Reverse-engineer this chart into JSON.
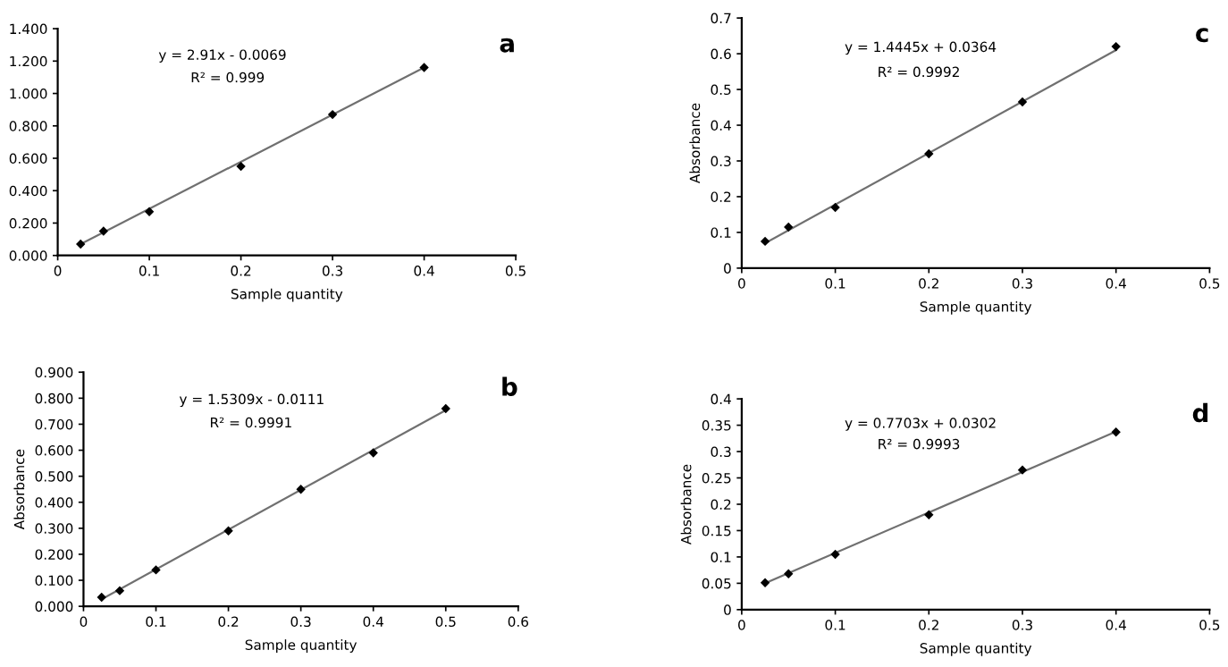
{
  "chart_data": [
    {
      "type": "scatter",
      "title": "a",
      "xlabel": "Sample quantity",
      "grid": false,
      "xlim": [
        0,
        0.5
      ],
      "xticks": [
        0,
        0.1,
        0.2,
        0.3,
        0.4,
        0.5
      ],
      "ylim": [
        0,
        1.4
      ],
      "yticks": [
        {
          "value": 0,
          "label": "0.000"
        },
        {
          "value": 0.2,
          "label": "0.200"
        },
        {
          "value": 0.4,
          "label": "0.400"
        },
        {
          "value": 0.6,
          "label": "0.600"
        },
        {
          "value": 0.8,
          "label": "0.800"
        },
        {
          "value": 1.0,
          "label": "1.000"
        },
        {
          "value": 1.2,
          "label": "1.200"
        },
        {
          "value": 1.4,
          "label": "1.400"
        }
      ],
      "annotations": [
        "y = 2.91x - 0.0069",
        "R² = 0.999"
      ],
      "series": [
        {
          "marker": "diamond",
          "color": "#000000",
          "x": [
            0.025,
            0.05,
            0.1,
            0.2,
            0.3,
            0.4
          ],
          "values": [
            0.07,
            0.15,
            0.27,
            0.55,
            0.87,
            1.16
          ]
        },
        {
          "type": "line",
          "color": "#707070",
          "x": [
            0.025,
            0.4
          ],
          "values": [
            0.07,
            1.16
          ]
        }
      ]
    },
    {
      "type": "scatter",
      "title": "b",
      "xlabel": "Sample quantity",
      "ylabel": "Absorbance",
      "grid": false,
      "xlim": [
        0,
        0.6
      ],
      "xticks": [
        0,
        0.1,
        0.2,
        0.3,
        0.4,
        0.5,
        0.6
      ],
      "ylim": [
        0,
        0.9
      ],
      "yticks": [
        {
          "value": 0,
          "label": "0.000"
        },
        {
          "value": 0.1,
          "label": "0.100"
        },
        {
          "value": 0.2,
          "label": "0.200"
        },
        {
          "value": 0.3,
          "label": "0.300"
        },
        {
          "value": 0.4,
          "label": "0.400"
        },
        {
          "value": 0.5,
          "label": "0.500"
        },
        {
          "value": 0.6,
          "label": "0.600"
        },
        {
          "value": 0.7,
          "label": "0.700"
        },
        {
          "value": 0.8,
          "label": "0.800"
        },
        {
          "value": 0.9,
          "label": "0.900"
        }
      ],
      "annotations": [
        "y = 1.5309x - 0.0111",
        "R² = 0.9991"
      ],
      "series": [
        {
          "marker": "diamond",
          "color": "#000000",
          "x": [
            0.025,
            0.05,
            0.1,
            0.2,
            0.3,
            0.4,
            0.5
          ],
          "values": [
            0.035,
            0.06,
            0.14,
            0.29,
            0.45,
            0.59,
            0.76
          ]
        },
        {
          "type": "line",
          "color": "#707070",
          "x": [
            0.025,
            0.5
          ],
          "values": [
            0.027,
            0.754
          ]
        }
      ]
    },
    {
      "type": "scatter",
      "title": "c",
      "xlabel": "Sample quantity",
      "ylabel": "Absorbance",
      "grid": false,
      "xlim": [
        0,
        0.5
      ],
      "xticks": [
        0,
        0.1,
        0.2,
        0.3,
        0.4,
        0.5
      ],
      "ylim": [
        0,
        0.7
      ],
      "yticks": [
        0,
        0.1,
        0.2,
        0.3,
        0.4,
        0.5,
        0.6,
        0.7
      ],
      "annotations": [
        "y = 1.4445x + 0.0364",
        "R² = 0.9992"
      ],
      "series": [
        {
          "marker": "diamond",
          "color": "#000000",
          "x": [
            0.025,
            0.05,
            0.1,
            0.2,
            0.3,
            0.4
          ],
          "values": [
            0.075,
            0.115,
            0.17,
            0.32,
            0.465,
            0.62
          ]
        },
        {
          "type": "line",
          "color": "#707070",
          "x": [
            0.025,
            0.4
          ],
          "values": [
            0.07,
            0.61
          ]
        }
      ]
    },
    {
      "type": "scatter",
      "title": "d",
      "xlabel": "Sample quantity",
      "ylabel": "Absorbance",
      "grid": false,
      "xlim": [
        0,
        0.5
      ],
      "xticks": [
        0,
        0.1,
        0.2,
        0.3,
        0.4,
        0.5
      ],
      "ylim": [
        0,
        0.4
      ],
      "yticks": [
        0,
        0.05,
        0.1,
        0.15,
        0.2,
        0.25,
        0.3,
        0.35,
        0.4
      ],
      "annotations": [
        "y = 0.7703x + 0.0302",
        "R² = 0.9993"
      ],
      "series": [
        {
          "marker": "diamond",
          "color": "#000000",
          "x": [
            0.025,
            0.05,
            0.1,
            0.2,
            0.3,
            0.4
          ],
          "values": [
            0.051,
            0.068,
            0.105,
            0.18,
            0.265,
            0.337
          ]
        },
        {
          "type": "line",
          "color": "#707070",
          "x": [
            0.025,
            0.4
          ],
          "values": [
            0.05,
            0.338
          ]
        }
      ]
    }
  ]
}
